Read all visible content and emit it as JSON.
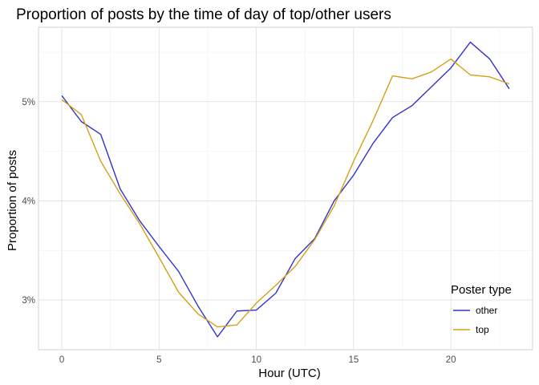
{
  "chart_data": {
    "type": "line",
    "title": "Proportion of posts by the time of day of top/other users",
    "xlabel": "Hour (UTC)",
    "ylabel": "Proportion of posts",
    "x": [
      0,
      1,
      2,
      3,
      4,
      5,
      6,
      7,
      8,
      9,
      10,
      11,
      12,
      13,
      14,
      15,
      16,
      17,
      18,
      19,
      20,
      21,
      22,
      23
    ],
    "xlim": [
      -1.2,
      24.2
    ],
    "ylim": [
      2.5,
      5.75
    ],
    "x_ticks": [
      0,
      5,
      10,
      15,
      20
    ],
    "x_tick_labels": [
      "0",
      "5",
      "10",
      "15",
      "20"
    ],
    "y_ticks": [
      3,
      4,
      5
    ],
    "y_tick_labels": [
      "3%",
      "4%",
      "5%"
    ],
    "grid": true,
    "legend": {
      "title": "Poster type",
      "position": "bottom-right"
    },
    "series": [
      {
        "name": "other",
        "color": "#3333cc",
        "values": [
          5.06,
          4.8,
          4.67,
          4.12,
          3.8,
          3.54,
          3.29,
          2.94,
          2.63,
          2.89,
          2.9,
          3.07,
          3.42,
          3.62,
          4.0,
          4.26,
          4.58,
          4.84,
          4.96,
          5.15,
          5.34,
          5.6,
          5.43,
          5.13
        ]
      },
      {
        "name": "top",
        "color": "#d4a017",
        "values": [
          5.02,
          4.87,
          4.4,
          4.07,
          3.77,
          3.43,
          3.08,
          2.86,
          2.73,
          2.75,
          2.97,
          3.15,
          3.34,
          3.61,
          3.95,
          4.4,
          4.81,
          5.26,
          5.23,
          5.3,
          5.43,
          5.27,
          5.25,
          5.18
        ]
      }
    ]
  }
}
